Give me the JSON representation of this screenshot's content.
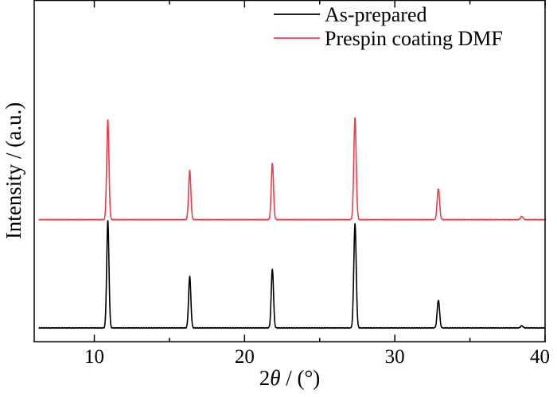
{
  "chart_data": {
    "type": "line",
    "xlabel_prefix": "2",
    "xlabel_symbol": "θ",
    "xlabel_suffix": " / (°)",
    "ylabel": "Intensity / (a.u.)",
    "xlim": [
      6,
      40
    ],
    "x_ticks": [
      10,
      20,
      30,
      40
    ],
    "y_ticks_visible": false,
    "grid": false,
    "legend_position": "top-right",
    "series": [
      {
        "name": "As-prepared",
        "color": "#000000",
        "baseline": 0.0,
        "peaks": [
          {
            "x": 10.9,
            "height": 1.0,
            "width": 0.075
          },
          {
            "x": 16.35,
            "height": 0.48,
            "width": 0.075
          },
          {
            "x": 21.85,
            "height": 0.55,
            "width": 0.075
          },
          {
            "x": 27.35,
            "height": 0.97,
            "width": 0.08
          },
          {
            "x": 32.9,
            "height": 0.26,
            "width": 0.08
          },
          {
            "x": 38.45,
            "height": 0.02,
            "width": 0.08
          }
        ]
      },
      {
        "name": "Prespin coating DMF",
        "color": "#e8414b",
        "baseline": 1.01,
        "peaks": [
          {
            "x": 10.9,
            "height": 0.93,
            "width": 0.075
          },
          {
            "x": 16.35,
            "height": 0.46,
            "width": 0.075
          },
          {
            "x": 21.85,
            "height": 0.53,
            "width": 0.075
          },
          {
            "x": 27.35,
            "height": 0.95,
            "width": 0.08
          },
          {
            "x": 32.9,
            "height": 0.29,
            "width": 0.08
          },
          {
            "x": 38.45,
            "height": 0.03,
            "width": 0.08
          }
        ]
      }
    ]
  }
}
